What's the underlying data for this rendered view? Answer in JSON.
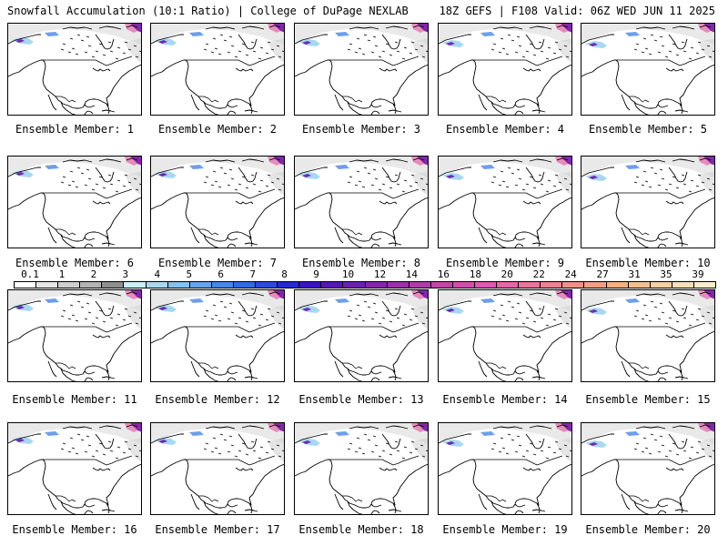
{
  "header": {
    "left_title": "Snowfall Accumulation (10:1 Ratio) | College of DuPage NEXLAB",
    "right_title": "18Z GEFS | F108 Valid: 06Z WED JUN 11 2025"
  },
  "members": [
    {
      "label": "Ensemble Member: 1"
    },
    {
      "label": "Ensemble Member: 2"
    },
    {
      "label": "Ensemble Member: 3"
    },
    {
      "label": "Ensemble Member: 4"
    },
    {
      "label": "Ensemble Member: 5"
    },
    {
      "label": "Ensemble Member: 6"
    },
    {
      "label": "Ensemble Member: 7"
    },
    {
      "label": "Ensemble Member: 8"
    },
    {
      "label": "Ensemble Member: 9"
    },
    {
      "label": "Ensemble Member: 10"
    },
    {
      "label": "Ensemble Member: 11"
    },
    {
      "label": "Ensemble Member: 12"
    },
    {
      "label": "Ensemble Member: 13"
    },
    {
      "label": "Ensemble Member: 14"
    },
    {
      "label": "Ensemble Member: 15"
    },
    {
      "label": "Ensemble Member: 16"
    },
    {
      "label": "Ensemble Member: 17"
    },
    {
      "label": "Ensemble Member: 18"
    },
    {
      "label": "Ensemble Member: 19"
    },
    {
      "label": "Ensemble Member: 20"
    }
  ],
  "colorbar": {
    "tick_labels": [
      "0.1",
      "1",
      "2",
      "3",
      "4",
      "5",
      "6",
      "7",
      "8",
      "9",
      "10",
      "12",
      "14",
      "16",
      "18",
      "20",
      "22",
      "24",
      "27",
      "31",
      "35",
      "39"
    ],
    "colors": [
      "#ffffff",
      "#e6e6e6",
      "#cfcfcf",
      "#b4b4b4",
      "#8f8f8f",
      "#c8f0f8",
      "#a8d8f0",
      "#86c0ec",
      "#6aa2ea",
      "#4a86e8",
      "#3468e4",
      "#2a4ae0",
      "#2328d8",
      "#3a10c8",
      "#5814b8",
      "#6d1eb0",
      "#8228aa",
      "#9834a4",
      "#ad3ea4",
      "#c246a8",
      "#d24eae",
      "#de58b4",
      "#e664a8",
      "#ea749a",
      "#ec8290",
      "#ee9288",
      "#f0a080",
      "#f2b084",
      "#f4c090",
      "#f6d0a0",
      "#f8e0b4",
      "#faecca"
    ]
  }
}
